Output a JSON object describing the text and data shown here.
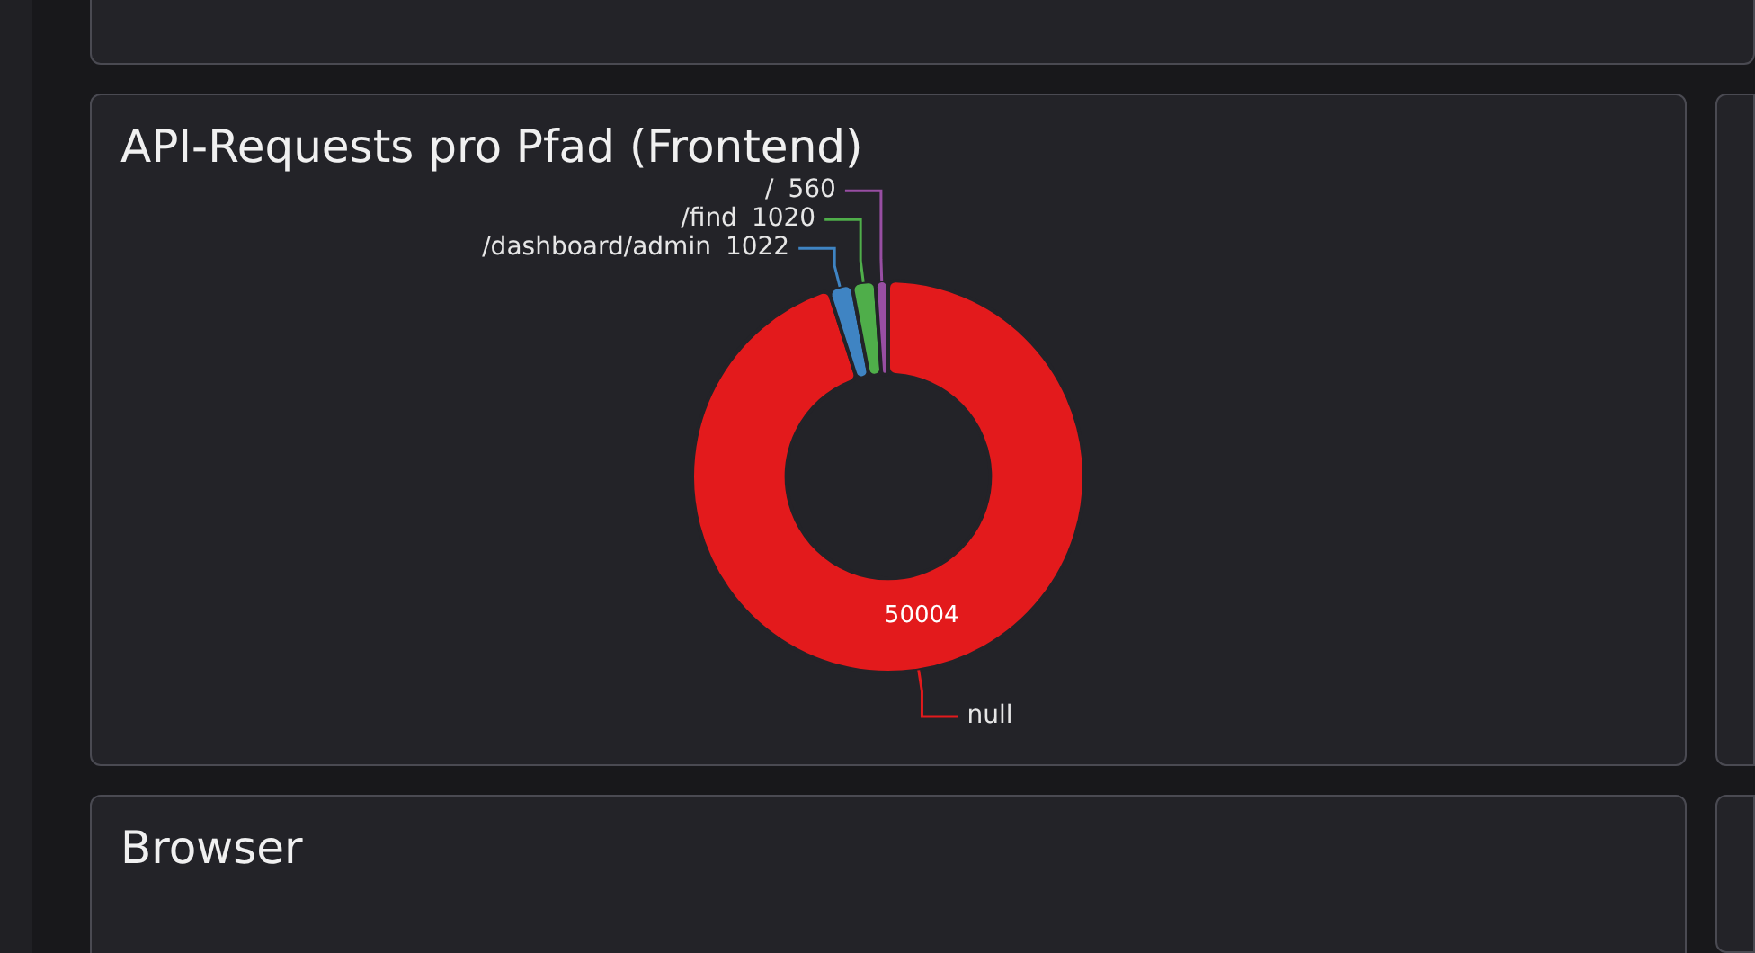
{
  "chart_data": [
    {
      "type": "donut",
      "title": "API-Requests pro Pfad (Frontend)",
      "categories": [
        "null",
        "/dashboard/admin",
        "/find",
        "/"
      ],
      "values": [
        50004,
        1022,
        1020,
        560
      ],
      "colors": [
        "#e31a1c",
        "#3f84c3",
        "#4fae4a",
        "#984ea3"
      ],
      "data_labels": true
    },
    {
      "type": "other",
      "title": "Browser"
    }
  ]
}
